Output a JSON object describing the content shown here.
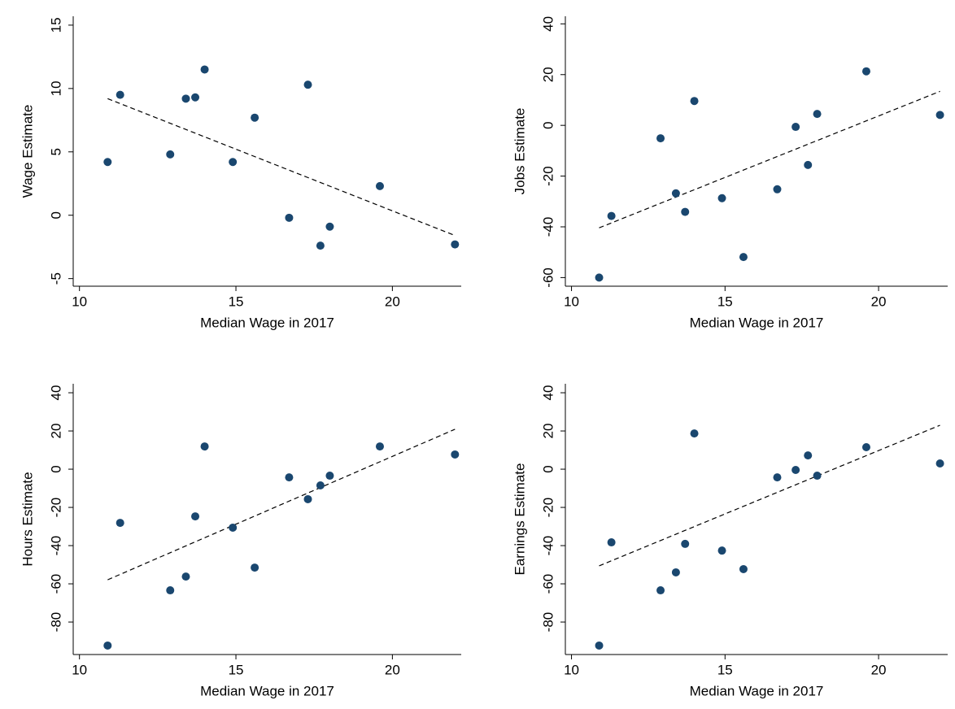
{
  "chart_data": [
    {
      "type": "scatter",
      "x_label": "Median Wage in 2017",
      "y_label": "Wage Estimate",
      "color": "#1a476f",
      "x": [
        10.9,
        11.3,
        12.9,
        13.4,
        13.7,
        14.0,
        14.9,
        15.6,
        16.7,
        17.3,
        17.7,
        18.0,
        19.6,
        22.0
      ],
      "values": [
        4.2,
        9.5,
        4.8,
        9.2,
        9.3,
        11.5,
        4.2,
        7.7,
        -0.2,
        10.3,
        -2.4,
        -0.9,
        2.3,
        -2.3
      ],
      "fit_line": {
        "x": [
          10.9,
          22.0
        ],
        "values": [
          9.2,
          -1.6
        ],
        "dashed": true
      },
      "xlim": [
        9.8,
        22.2
      ],
      "ylim": [
        -5.6,
        15.7
      ],
      "xticks": [
        10,
        15,
        20
      ],
      "yticks": [
        -5,
        0,
        5,
        10,
        15
      ]
    },
    {
      "type": "scatter",
      "x_label": "Median Wage in 2017",
      "y_label": "Jobs Estimate",
      "color": "#1a476f",
      "x": [
        10.9,
        11.3,
        12.9,
        13.4,
        13.7,
        14.0,
        14.9,
        15.6,
        16.7,
        17.3,
        17.7,
        18.0,
        19.6,
        22.0
      ],
      "values": [
        -60,
        -35.7,
        -5.1,
        -26.8,
        -34.1,
        9.6,
        -28.7,
        -51.9,
        -25.2,
        -0.6,
        -15.6,
        4.5,
        21.3,
        4.1
      ],
      "fit_line": {
        "x": [
          10.9,
          22.0
        ],
        "values": [
          -40.4,
          13.4
        ],
        "dashed": true
      },
      "xlim": [
        9.8,
        22.25
      ],
      "ylim": [
        -63.4,
        43
      ],
      "xticks": [
        10,
        15,
        20
      ],
      "yticks": [
        -60,
        -40,
        -20,
        0,
        20,
        40
      ]
    },
    {
      "type": "scatter",
      "x_label": "Median Wage in 2017",
      "y_label": "Hours Estimate",
      "color": "#1a476f",
      "x": [
        10.9,
        11.3,
        12.9,
        13.4,
        13.7,
        14.0,
        14.9,
        15.6,
        16.7,
        17.3,
        17.7,
        18.0,
        19.6,
        22.0
      ],
      "values": [
        -92.3,
        -28.1,
        -63.4,
        -56.2,
        -24.7,
        11.9,
        -30.6,
        -51.5,
        -4.3,
        -15.7,
        -8.5,
        -3.4,
        11.9,
        7.7
      ],
      "fit_line": {
        "x": [
          10.9,
          22.0
        ],
        "values": [
          -57.9,
          20.9
        ],
        "dashed": true
      },
      "xlim": [
        9.8,
        22.2
      ],
      "ylim": [
        -97,
        44.7
      ],
      "xticks": [
        10,
        15,
        20
      ],
      "yticks": [
        -80,
        -60,
        -40,
        -20,
        0,
        20,
        40
      ]
    },
    {
      "type": "scatter",
      "x_label": "Median Wage in 2017",
      "y_label": "Earnings Estimate",
      "color": "#1a476f",
      "x": [
        10.9,
        11.3,
        12.9,
        13.4,
        13.7,
        14.0,
        14.9,
        15.6,
        16.7,
        17.3,
        17.7,
        18.0,
        19.6,
        22.0
      ],
      "values": [
        -92.3,
        -38.3,
        -63.4,
        -54.0,
        -39.1,
        18.7,
        -42.6,
        -52.3,
        -4.3,
        -0.4,
        7.2,
        -3.4,
        11.5,
        3.0
      ],
      "fit_line": {
        "x": [
          10.9,
          22.0
        ],
        "values": [
          -50.6,
          23
        ],
        "dashed": true
      },
      "xlim": [
        9.8,
        22.25
      ],
      "ylim": [
        -97,
        44.7
      ],
      "xticks": [
        10,
        15,
        20
      ],
      "yticks": [
        -80,
        -60,
        -40,
        -20,
        0,
        20,
        40
      ]
    }
  ]
}
